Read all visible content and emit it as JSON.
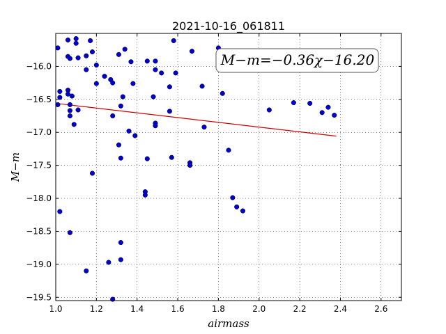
{
  "chart_data": {
    "type": "scatter",
    "title": "2021-10-16_061811",
    "xlabel": "airmass",
    "ylabel": "M−m",
    "xlim": [
      1.0,
      2.7
    ],
    "ylim": [
      -19.55,
      -15.5
    ],
    "y_inverted": false,
    "grid": true,
    "xticks": [
      "1.0",
      "1.2",
      "1.4",
      "1.6",
      "1.8",
      "2.0",
      "2.2",
      "2.4",
      "2.6"
    ],
    "xtick_values": [
      1.0,
      1.2,
      1.4,
      1.6,
      1.8,
      2.0,
      2.2,
      2.4,
      2.6
    ],
    "yticks": [
      "−16.0",
      "−16.5",
      "−17.0",
      "−17.5",
      "−18.0",
      "−18.5",
      "−19.0",
      "−19.5"
    ],
    "ytick_values": [
      -16.0,
      -16.5,
      -17.0,
      -17.5,
      -18.0,
      -18.5,
      -19.0,
      -19.5
    ],
    "annotation": "M−m=−0.36χ−16.20",
    "fit": {
      "slope": -0.36,
      "intercept": -16.2,
      "x_range": [
        1.02,
        2.38
      ],
      "color": "#cc0000"
    },
    "marker_color": "#0000cc",
    "points": [
      [
        1.01,
        -15.72
      ],
      [
        1.06,
        -15.6
      ],
      [
        1.1,
        -15.58
      ],
      [
        1.1,
        -15.65
      ],
      [
        1.06,
        -15.85
      ],
      [
        1.07,
        -15.88
      ],
      [
        1.11,
        -15.87
      ],
      [
        1.15,
        -15.84
      ],
      [
        1.17,
        -15.61
      ],
      [
        1.18,
        -15.78
      ],
      [
        1.2,
        -15.98
      ],
      [
        1.15,
        -16.05
      ],
      [
        1.24,
        -16.15
      ],
      [
        1.27,
        -16.2
      ],
      [
        1.28,
        -16.25
      ],
      [
        1.2,
        -16.26
      ],
      [
        1.31,
        -15.82
      ],
      [
        1.34,
        -15.74
      ],
      [
        1.37,
        -15.93
      ],
      [
        1.38,
        -16.26
      ],
      [
        1.33,
        -16.46
      ],
      [
        1.32,
        -16.6
      ],
      [
        1.02,
        -16.38
      ],
      [
        1.02,
        -16.47
      ],
      [
        1.01,
        -16.58
      ],
      [
        1.06,
        -16.36
      ],
      [
        1.06,
        -16.42
      ],
      [
        1.08,
        -16.45
      ],
      [
        1.07,
        -16.58
      ],
      [
        1.07,
        -16.67
      ],
      [
        1.07,
        -16.75
      ],
      [
        1.11,
        -16.66
      ],
      [
        1.09,
        -16.88
      ],
      [
        1.28,
        -16.75
      ],
      [
        1.36,
        -16.98
      ],
      [
        1.39,
        -17.05
      ],
      [
        1.31,
        -17.19
      ],
      [
        1.32,
        -17.39
      ],
      [
        1.45,
        -15.92
      ],
      [
        1.49,
        -15.92
      ],
      [
        1.49,
        -16.05
      ],
      [
        1.52,
        -16.1
      ],
      [
        1.56,
        -16.31
      ],
      [
        1.59,
        -16.1
      ],
      [
        1.58,
        -15.61
      ],
      [
        1.67,
        -15.77
      ],
      [
        1.72,
        -16.3
      ],
      [
        1.8,
        -15.72
      ],
      [
        1.82,
        -16.41
      ],
      [
        1.48,
        -16.46
      ],
      [
        1.56,
        -16.68
      ],
      [
        1.49,
        -16.86
      ],
      [
        1.49,
        -16.9
      ],
      [
        1.73,
        -16.92
      ],
      [
        1.45,
        -17.4
      ],
      [
        1.57,
        -17.38
      ],
      [
        1.66,
        -17.46
      ],
      [
        1.66,
        -17.5
      ],
      [
        1.85,
        -17.27
      ],
      [
        1.44,
        -17.9
      ],
      [
        1.44,
        -17.95
      ],
      [
        1.87,
        -17.99
      ],
      [
        1.89,
        -18.13
      ],
      [
        1.92,
        -18.19
      ],
      [
        2.05,
        -16.66
      ],
      [
        2.17,
        -16.55
      ],
      [
        2.25,
        -16.56
      ],
      [
        2.31,
        -16.7
      ],
      [
        2.34,
        -16.62
      ],
      [
        2.37,
        -16.74
      ],
      [
        1.18,
        -17.62
      ],
      [
        1.02,
        -18.2
      ],
      [
        1.07,
        -18.52
      ],
      [
        1.32,
        -18.67
      ],
      [
        1.32,
        -18.93
      ],
      [
        1.26,
        -18.97
      ],
      [
        1.15,
        -19.1
      ],
      [
        1.28,
        -19.53
      ]
    ]
  }
}
